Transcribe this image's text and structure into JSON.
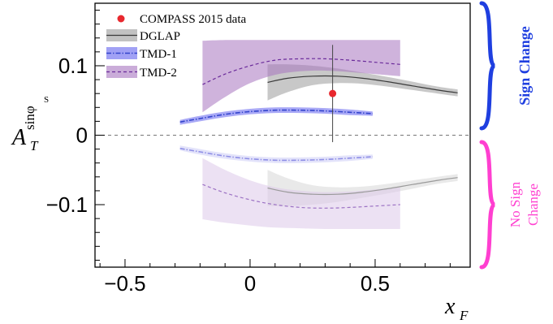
{
  "chart_data": {
    "type": "line",
    "xlabel": "x_F",
    "ylabel": "A_T^{sinφ_S}",
    "xlim": [
      -0.62,
      0.88
    ],
    "ylim": [
      -0.19,
      0.19
    ],
    "x_ticks": [
      -0.5,
      0,
      0.5
    ],
    "x_tick_labels": [
      "−0.5",
      "0",
      "0.5"
    ],
    "y_ticks": [
      -0.1,
      0,
      0.1
    ],
    "y_tick_labels": [
      "−0.1",
      "0",
      "0.1"
    ],
    "zero_line": true,
    "legend": {
      "placement": "top-left",
      "entries": [
        {
          "label": "COMPASS 2015 data",
          "key": "data"
        },
        {
          "label": "DGLAP",
          "key": "dglap"
        },
        {
          "label": "TMD-1",
          "key": "tmd1"
        },
        {
          "label": "TMD-2",
          "key": "tmd2"
        }
      ]
    },
    "data_points": [
      {
        "name": "COMPASS 2015 data",
        "x": 0.33,
        "y": 0.06,
        "err_low": -0.01,
        "err_high": 0.13,
        "color": "#e8282e"
      }
    ],
    "series": [
      {
        "name": "DGLAP",
        "key": "dglap",
        "group": "sign-change",
        "color": "#3a3a3a",
        "band_color": "#9a9a9a",
        "band_opacity": 0.55,
        "line_style": "solid",
        "x": [
          0.07,
          0.15,
          0.25,
          0.35,
          0.45,
          0.55,
          0.65,
          0.75,
          0.83
        ],
        "y": [
          0.076,
          0.082,
          0.085,
          0.085,
          0.082,
          0.077,
          0.071,
          0.065,
          0.061
        ],
        "band_low": [
          0.05,
          0.062,
          0.072,
          0.075,
          0.074,
          0.07,
          0.065,
          0.06,
          0.056
        ],
        "band_high": [
          0.102,
          0.102,
          0.1,
          0.096,
          0.09,
          0.084,
          0.077,
          0.07,
          0.066
        ]
      },
      {
        "name": "TMD-1",
        "key": "tmd1",
        "group": "sign-change",
        "color": "#3344cc",
        "band_color": "#6f6ff0",
        "band_opacity": 0.6,
        "line_style": "dashdot",
        "x": [
          -0.28,
          -0.2,
          -0.1,
          0,
          0.1,
          0.2,
          0.3,
          0.4,
          0.49
        ],
        "y": [
          0.019,
          0.024,
          0.03,
          0.034,
          0.036,
          0.036,
          0.035,
          0.033,
          0.031
        ],
        "band_low": [
          0.015,
          0.02,
          0.026,
          0.03,
          0.032,
          0.032,
          0.031,
          0.029,
          0.028
        ],
        "band_high": [
          0.022,
          0.028,
          0.034,
          0.038,
          0.04,
          0.04,
          0.039,
          0.037,
          0.034
        ]
      },
      {
        "name": "TMD-2",
        "key": "tmd2",
        "group": "sign-change",
        "color": "#6a2a9a",
        "band_color": "#a774c0",
        "band_opacity": 0.55,
        "line_style": "dashed",
        "x": [
          -0.19,
          -0.1,
          0,
          0.1,
          0.2,
          0.3,
          0.4,
          0.5,
          0.6
        ],
        "y": [
          0.073,
          0.088,
          0.1,
          0.108,
          0.11,
          0.11,
          0.108,
          0.105,
          0.102
        ],
        "band_low": [
          0.033,
          0.055,
          0.075,
          0.087,
          0.092,
          0.093,
          0.091,
          0.088,
          0.085
        ],
        "band_high": [
          0.136,
          0.137,
          0.137,
          0.137,
          0.137,
          0.137,
          0.137,
          0.137,
          0.137
        ]
      },
      {
        "name": "DGLAP (no sign change)",
        "key": "dglap_neg",
        "group": "no-sign-change",
        "color": "#9a9a9a",
        "band_color": "#c8c8c8",
        "band_opacity": 0.4,
        "line_style": "solid",
        "x": [
          0.07,
          0.15,
          0.25,
          0.35,
          0.45,
          0.55,
          0.65,
          0.75,
          0.83
        ],
        "y": [
          -0.076,
          -0.082,
          -0.085,
          -0.085,
          -0.082,
          -0.077,
          -0.071,
          -0.065,
          -0.061
        ],
        "band_low": [
          -0.102,
          -0.102,
          -0.1,
          -0.096,
          -0.09,
          -0.084,
          -0.077,
          -0.07,
          -0.066
        ],
        "band_high": [
          -0.05,
          -0.062,
          -0.072,
          -0.075,
          -0.074,
          -0.07,
          -0.065,
          -0.06,
          -0.056
        ]
      },
      {
        "name": "TMD-1 (no sign change)",
        "key": "tmd1_neg",
        "group": "no-sign-change",
        "color": "#8f8fe6",
        "band_color": "#c2c2f4",
        "band_opacity": 0.45,
        "line_style": "dashdot",
        "x": [
          -0.28,
          -0.2,
          -0.1,
          0,
          0.1,
          0.2,
          0.3,
          0.4,
          0.49
        ],
        "y": [
          -0.019,
          -0.024,
          -0.03,
          -0.034,
          -0.036,
          -0.036,
          -0.035,
          -0.033,
          -0.031
        ],
        "band_low": [
          -0.022,
          -0.028,
          -0.034,
          -0.038,
          -0.04,
          -0.04,
          -0.039,
          -0.037,
          -0.034
        ],
        "band_high": [
          -0.015,
          -0.02,
          -0.026,
          -0.03,
          -0.032,
          -0.032,
          -0.031,
          -0.029,
          -0.028
        ]
      },
      {
        "name": "TMD-2 (no sign change)",
        "key": "tmd2_neg",
        "group": "no-sign-change",
        "color": "#9c72c4",
        "band_color": "#dcc8ea",
        "band_opacity": 0.55,
        "line_style": "dashed",
        "x": [
          -0.19,
          -0.1,
          0,
          0.1,
          0.2,
          0.3,
          0.4,
          0.5,
          0.6
        ],
        "y": [
          -0.071,
          -0.083,
          -0.093,
          -0.1,
          -0.104,
          -0.105,
          -0.104,
          -0.102,
          -0.1
        ],
        "band_low": [
          -0.121,
          -0.126,
          -0.13,
          -0.133,
          -0.134,
          -0.135,
          -0.135,
          -0.135,
          -0.135
        ],
        "band_high": [
          -0.033,
          -0.05,
          -0.065,
          -0.075,
          -0.08,
          -0.082,
          -0.081,
          -0.078,
          -0.075
        ]
      }
    ],
    "annotations": [
      {
        "key": "sign_change",
        "text": "Sign Change",
        "color": "#1f3fe0",
        "spans": [
          0.01,
          0.19
        ]
      },
      {
        "key": "no_sign_change",
        "text": "No Sign Change",
        "lines": [
          "No Sign",
          "Change"
        ],
        "color": "#ff3fd0",
        "spans": [
          -0.19,
          -0.01
        ]
      }
    ]
  }
}
